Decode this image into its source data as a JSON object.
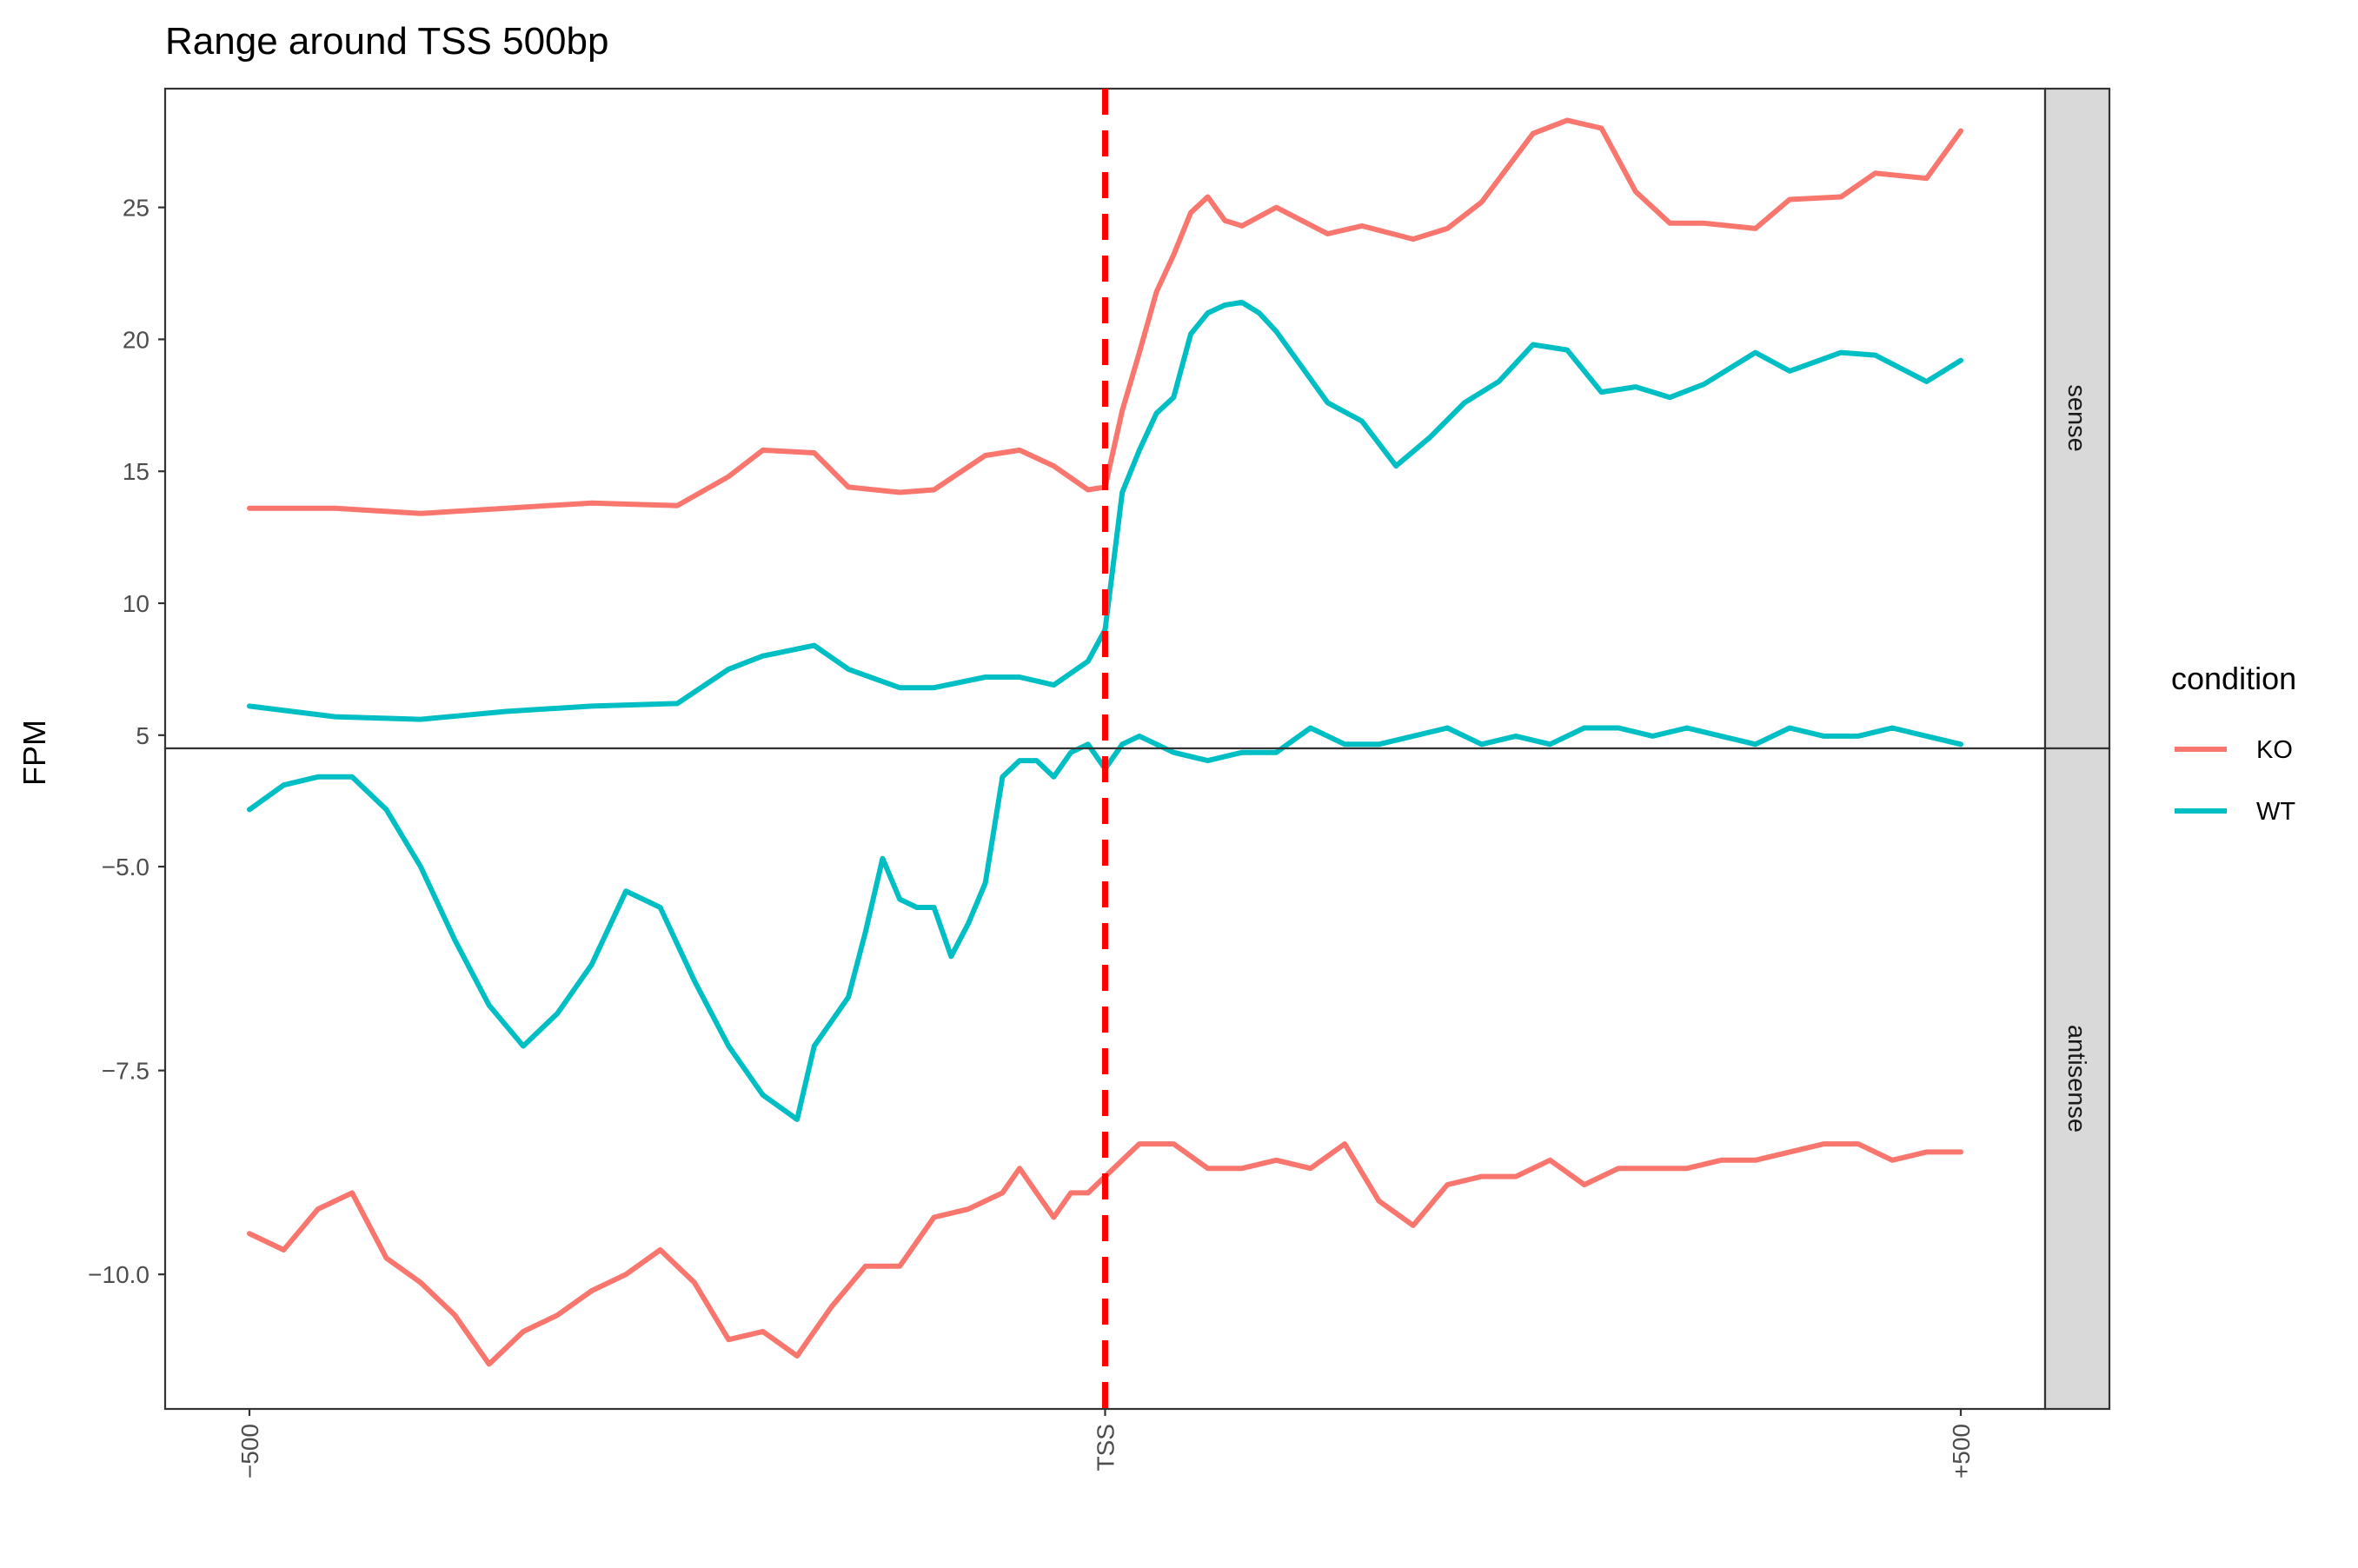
{
  "chart_data": {
    "type": "line",
    "title": "Range around TSS 500bp",
    "xlabel": "",
    "ylabel": "FPM",
    "x_categories": [
      "-500",
      "TSS",
      "+500"
    ],
    "x_tick_labels": [
      "−500",
      "TSS",
      "+500"
    ],
    "x_range": [
      -500,
      500
    ],
    "vline": {
      "x": 0,
      "color": "#ff0000",
      "style": "dashed"
    },
    "legend": {
      "title": "condition",
      "position": "right",
      "entries": [
        {
          "name": "KO",
          "color": "#F8766D"
        },
        {
          "name": "WT",
          "color": "#00BFC4"
        }
      ]
    },
    "grid": false,
    "panels": [
      {
        "strip": "sense",
        "ylim": [
          4.5,
          29.5
        ],
        "yticks": [
          5,
          10,
          15,
          20,
          25
        ],
        "ytick_labels": [
          "5",
          "10",
          "15",
          "20",
          "25"
        ],
        "series": [
          {
            "name": "KO",
            "color": "#F8766D",
            "x": [
              -500,
              -450,
              -400,
              -350,
              -300,
              -250,
              -220,
              -200,
              -170,
              -150,
              -120,
              -100,
              -70,
              -50,
              -30,
              -10,
              0,
              10,
              20,
              30,
              40,
              50,
              60,
              70,
              80,
              100,
              130,
              150,
              180,
              200,
              220,
              250,
              270,
              290,
              310,
              330,
              350,
              380,
              400,
              430,
              450,
              480,
              500
            ],
            "y": [
              13.6,
              13.6,
              13.4,
              13.6,
              13.8,
              13.7,
              14.8,
              15.8,
              15.7,
              14.4,
              14.2,
              14.3,
              15.6,
              15.8,
              15.2,
              14.3,
              14.4,
              17.3,
              19.5,
              21.8,
              23.2,
              24.8,
              25.4,
              24.5,
              24.3,
              25.0,
              24.0,
              24.3,
              23.8,
              24.2,
              25.2,
              27.8,
              28.3,
              28.0,
              25.6,
              24.4,
              24.4,
              24.2,
              25.3,
              25.4,
              26.3,
              26.1,
              27.9
            ]
          },
          {
            "name": "WT",
            "color": "#00BFC4",
            "x": [
              -500,
              -450,
              -400,
              -350,
              -300,
              -250,
              -220,
              -200,
              -170,
              -150,
              -120,
              -100,
              -70,
              -50,
              -30,
              -10,
              0,
              10,
              20,
              30,
              40,
              50,
              60,
              70,
              80,
              90,
              100,
              130,
              150,
              170,
              190,
              210,
              230,
              250,
              270,
              290,
              310,
              330,
              350,
              380,
              400,
              430,
              450,
              480,
              500
            ],
            "y": [
              6.1,
              5.7,
              5.6,
              5.9,
              6.1,
              6.2,
              7.5,
              8.0,
              8.4,
              7.5,
              6.8,
              6.8,
              7.2,
              7.2,
              6.9,
              7.8,
              9.0,
              14.2,
              15.8,
              17.2,
              17.8,
              20.2,
              21.0,
              21.3,
              21.4,
              21.0,
              20.3,
              17.6,
              16.9,
              15.2,
              16.3,
              17.6,
              18.4,
              19.8,
              19.6,
              18.0,
              18.2,
              17.8,
              18.3,
              19.5,
              18.8,
              19.5,
              19.4,
              18.4,
              19.2
            ]
          }
        ]
      },
      {
        "strip": "antisense",
        "ylim": [
          -11.65,
          -3.55
        ],
        "yticks": [
          -5.0,
          -7.5,
          -10.0
        ],
        "ytick_labels": [
          "−5.0",
          "−7.5",
          "−10.0"
        ],
        "series": [
          {
            "name": "WT",
            "color": "#00BFC4",
            "x": [
              -500,
              -480,
              -460,
              -440,
              -420,
              -400,
              -380,
              -360,
              -340,
              -320,
              -300,
              -280,
              -260,
              -240,
              -220,
              -200,
              -180,
              -170,
              -160,
              -150,
              -140,
              -130,
              -120,
              -110,
              -100,
              -90,
              -80,
              -70,
              -60,
              -50,
              -40,
              -30,
              -20,
              -10,
              0,
              10,
              20,
              40,
              60,
              80,
              100,
              120,
              140,
              160,
              180,
              200,
              220,
              240,
              260,
              280,
              300,
              320,
              340,
              360,
              380,
              400,
              420,
              440,
              460,
              480,
              500
            ],
            "y": [
              -4.3,
              -4.0,
              -3.9,
              -3.9,
              -4.3,
              -5.0,
              -5.9,
              -6.7,
              -7.2,
              -6.8,
              -6.2,
              -5.3,
              -5.5,
              -6.4,
              -7.2,
              -7.8,
              -8.1,
              -7.2,
              -6.9,
              -6.6,
              -5.8,
              -4.9,
              -5.4,
              -5.5,
              -5.5,
              -6.1,
              -5.7,
              -5.2,
              -3.9,
              -3.7,
              -3.7,
              -3.9,
              -3.6,
              -3.5,
              -3.8,
              -3.5,
              -3.4,
              -3.6,
              -3.7,
              -3.6,
              -3.6,
              -3.3,
              -3.5,
              -3.5,
              -3.4,
              -3.3,
              -3.5,
              -3.4,
              -3.5,
              -3.3,
              -3.3,
              -3.4,
              -3.3,
              -3.4,
              -3.5,
              -3.3,
              -3.4,
              -3.4,
              -3.3,
              -3.4,
              -3.5
            ]
          },
          {
            "name": "KO",
            "color": "#F8766D",
            "x": [
              -500,
              -480,
              -460,
              -440,
              -420,
              -400,
              -380,
              -360,
              -340,
              -320,
              -300,
              -280,
              -260,
              -240,
              -220,
              -200,
              -180,
              -160,
              -140,
              -120,
              -100,
              -80,
              -60,
              -50,
              -40,
              -30,
              -20,
              -10,
              0,
              20,
              40,
              60,
              80,
              100,
              120,
              140,
              160,
              180,
              200,
              220,
              240,
              260,
              280,
              300,
              320,
              340,
              360,
              380,
              400,
              420,
              440,
              460,
              480,
              500
            ],
            "y": [
              -9.5,
              -9.7,
              -9.2,
              -9.0,
              -9.8,
              -10.1,
              -10.5,
              -11.1,
              -10.7,
              -10.5,
              -10.2,
              -10.0,
              -9.7,
              -10.1,
              -10.8,
              -10.7,
              -11.0,
              -10.4,
              -9.9,
              -9.9,
              -9.3,
              -9.2,
              -9.0,
              -8.7,
              -9.0,
              -9.3,
              -9.0,
              -9.0,
              -8.8,
              -8.4,
              -8.4,
              -8.7,
              -8.7,
              -8.6,
              -8.7,
              -8.4,
              -9.1,
              -9.4,
              -8.9,
              -8.8,
              -8.8,
              -8.6,
              -8.9,
              -8.7,
              -8.7,
              -8.7,
              -8.6,
              -8.6,
              -8.5,
              -8.4,
              -8.4,
              -8.6,
              -8.5,
              -8.5
            ]
          }
        ]
      }
    ]
  }
}
